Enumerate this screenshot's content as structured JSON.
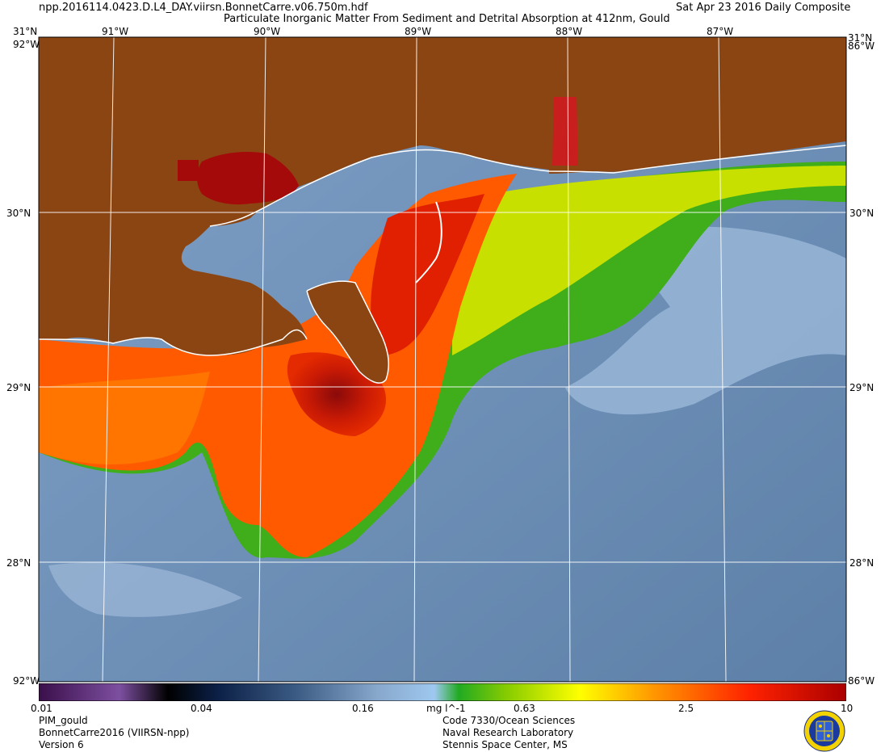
{
  "header": {
    "filename": "npp.2016114.0423.D.L4_DAY.viirsn.BonnetCarre.v06.750m.hdf",
    "product_title": "Particulate Inorganic Matter From Sediment and Detrital Absorption at 412nm, Gould",
    "date": "Sat Apr 23 2016 Daily Composite"
  },
  "map": {
    "lon_labels": [
      "91°W",
      "90°W",
      "89°W",
      "88°W",
      "87°W"
    ],
    "lat_labels": [
      "30°N",
      "29°N",
      "28°N"
    ],
    "corner_labels": {
      "top_lat": "31°N",
      "top_left_lon": "92°W",
      "top_right_lon": "86°W",
      "bottom_left_lon": "92°W",
      "bottom_right_lon": "86°W"
    },
    "colors": {
      "land": "#8b4513",
      "coast": "#ffffff",
      "grid": "#ffffff",
      "offshore_water": "#6f91b8",
      "turbid_plume": "#ff3c00"
    }
  },
  "colorbar": {
    "ticks": [
      "0.01",
      "0.04",
      "0.16",
      "0.63",
      "2.5",
      "10"
    ],
    "units": "mg l^-1",
    "scale": "log",
    "range": [
      0.01,
      10
    ],
    "stops": [
      "#3a0f4a",
      "#7d4fa0",
      "#000000",
      "#0b1f45",
      "#3c5c85",
      "#88a8cc",
      "#9ec8f0",
      "#22aa22",
      "#88cc00",
      "#ffff00",
      "#ff9900",
      "#ff2200",
      "#aa0000"
    ]
  },
  "footer": {
    "left": [
      "PIM_gould",
      "BonnetCarre2016 (VIIRSN-npp)",
      "Version 6"
    ],
    "center": [
      "Code 7330/Ocean Sciences",
      "Naval Research Laboratory",
      "Stennis Space Center, MS"
    ],
    "logo": "nrl-seal-icon"
  }
}
